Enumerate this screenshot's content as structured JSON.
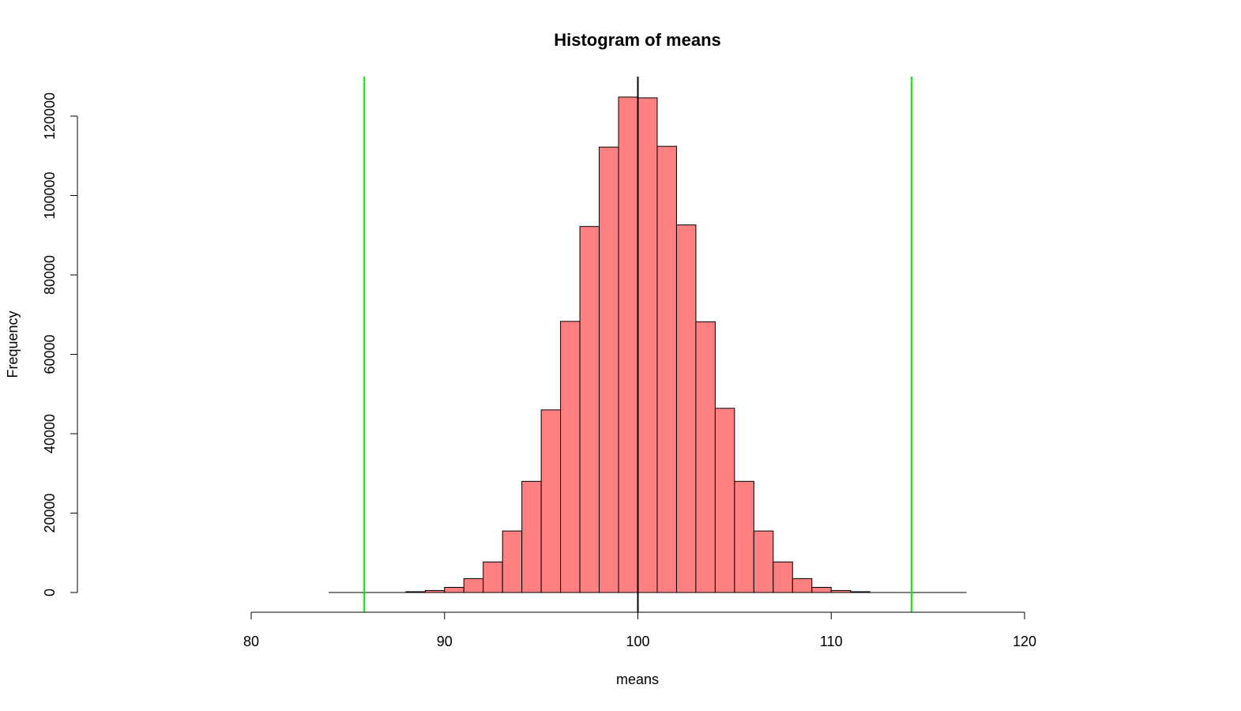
{
  "chart_data": {
    "type": "bar",
    "title": "Histogram of means",
    "xlabel": "means",
    "ylabel": "Frequency",
    "xlim": [
      80,
      120
    ],
    "ylim": [
      0,
      120000
    ],
    "x_ticks": [
      "80",
      "90",
      "100",
      "110",
      "120"
    ],
    "y_ticks": [
      "0",
      "20000",
      "40000",
      "60000",
      "80000",
      "100000",
      "120000"
    ],
    "bin_width": 1,
    "data_range": [
      84,
      117
    ],
    "bins": [
      {
        "start": 88,
        "value": 200
      },
      {
        "start": 89,
        "value": 500
      },
      {
        "start": 90,
        "value": 1300
      },
      {
        "start": 91,
        "value": 3500
      },
      {
        "start": 92,
        "value": 7700
      },
      {
        "start": 93,
        "value": 15500
      },
      {
        "start": 94,
        "value": 28000
      },
      {
        "start": 95,
        "value": 46000
      },
      {
        "start": 96,
        "value": 68300
      },
      {
        "start": 97,
        "value": 92200
      },
      {
        "start": 98,
        "value": 112200
      },
      {
        "start": 99,
        "value": 124800
      },
      {
        "start": 100,
        "value": 124600
      },
      {
        "start": 101,
        "value": 112400
      },
      {
        "start": 102,
        "value": 92600
      },
      {
        "start": 103,
        "value": 68200
      },
      {
        "start": 104,
        "value": 46400
      },
      {
        "start": 105,
        "value": 28000
      },
      {
        "start": 106,
        "value": 15500
      },
      {
        "start": 107,
        "value": 7700
      },
      {
        "start": 108,
        "value": 3500
      },
      {
        "start": 109,
        "value": 1300
      },
      {
        "start": 110,
        "value": 500
      },
      {
        "start": 111,
        "value": 200
      }
    ],
    "bar_color": "#FF8080",
    "bar_border": "#000000",
    "vlines": [
      {
        "x": 100,
        "color": "#000000"
      },
      {
        "x": 85.85,
        "color": "#00EE00"
      },
      {
        "x": 114.15,
        "color": "#00EE00"
      }
    ],
    "grid": false,
    "legend": "none"
  }
}
